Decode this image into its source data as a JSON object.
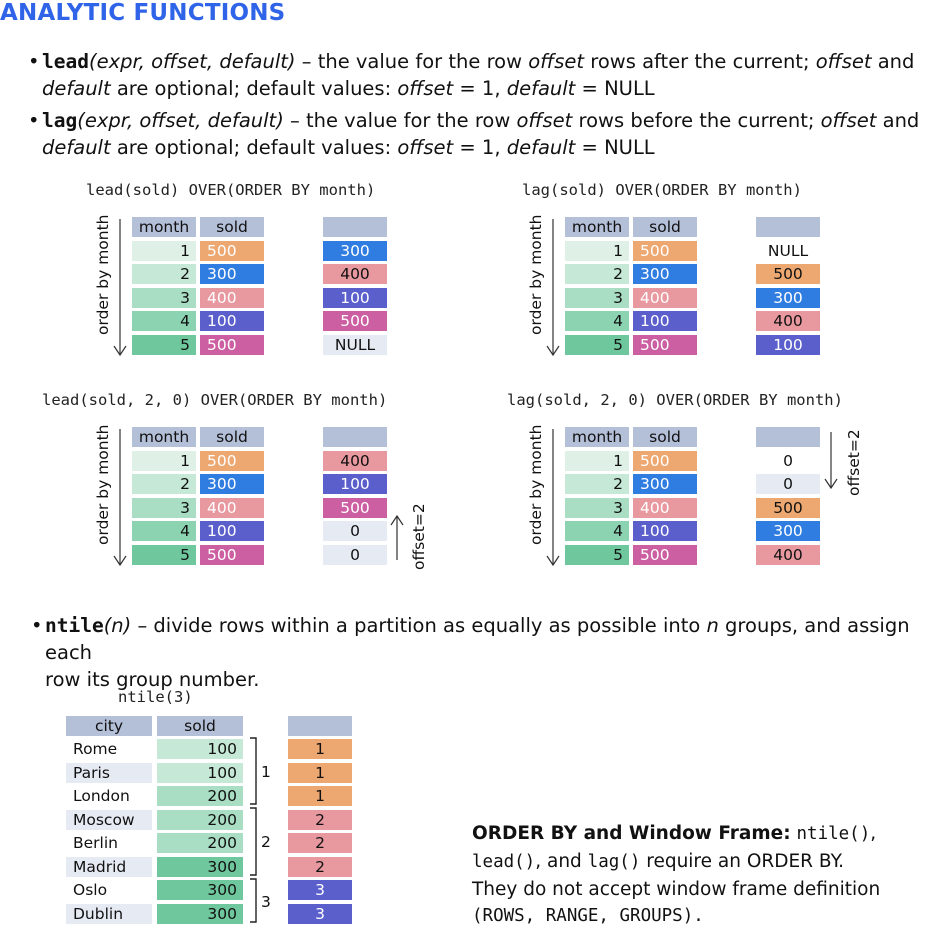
{
  "heading": "ANALYTIC FUNCTIONS",
  "bullets": {
    "lead": {
      "keyword": "lead",
      "args": "(expr, offset, default)",
      "line1_a": " – the value for the row ",
      "line1_i": "offset",
      "line1_b": " rows after the current; ",
      "line1_i2": "offset",
      "line1_c": " and",
      "line2_i": "default",
      "line2_a": " are optional; default values: ",
      "line2_i2": "offset",
      "line2_b": " = 1, ",
      "line2_i3": "default",
      "line2_c": " = NULL"
    },
    "lag": {
      "keyword": "lag",
      "args": "(expr, offset, default)",
      "line1_a": " – the value for the row ",
      "line1_i": "offset",
      "line1_b": " rows before the current; ",
      "line1_i2": "offset",
      "line1_c": " and",
      "line2_i": "default",
      "line2_a": " are optional; default values: ",
      "line2_i2": "offset",
      "line2_b": " = 1, ",
      "line2_i3": "default",
      "line2_c": " = NULL"
    },
    "ntile": {
      "keyword": "ntile",
      "args": "(n)",
      "line1_a": " – divide rows within a partition as equally as possible into ",
      "line1_i": "n",
      "line1_b": " groups, and assign each",
      "line2": "row its group number."
    }
  },
  "colors": {
    "c500": "#eda872",
    "c300": "#2f7de1",
    "c400": "#e8999f",
    "c100": "#5b5fcc",
    "c500b": "#cc5fa2",
    "m1": "#dff1e7",
    "m2": "#c5e9d6",
    "m3": "#a9dec4",
    "m4": "#8bd3b1",
    "m5": "#6fc89d",
    "header": "#b4bfd8",
    "light": "#e6eaf3"
  },
  "lead_simple": {
    "sql": "lead(sold) OVER(ORDER BY month)",
    "order_label": "order by month",
    "headers": [
      "month",
      "sold"
    ],
    "months": [
      "1",
      "2",
      "3",
      "4",
      "5"
    ],
    "sold": [
      "500",
      "300",
      "400",
      "100",
      "500"
    ],
    "result": [
      "300",
      "400",
      "100",
      "500",
      "NULL"
    ]
  },
  "lag_simple": {
    "sql": "lag(sold) OVER(ORDER BY month)",
    "order_label": "order by month",
    "headers": [
      "month",
      "sold"
    ],
    "months": [
      "1",
      "2",
      "3",
      "4",
      "5"
    ],
    "sold": [
      "500",
      "300",
      "400",
      "100",
      "500"
    ],
    "result": [
      "NULL",
      "500",
      "300",
      "400",
      "100"
    ]
  },
  "lead_offset": {
    "sql": "lead(sold, 2, 0) OVER(ORDER BY month)",
    "order_label": "order by month",
    "offset_label": "offset=2",
    "headers": [
      "month",
      "sold"
    ],
    "months": [
      "1",
      "2",
      "3",
      "4",
      "5"
    ],
    "sold": [
      "500",
      "300",
      "400",
      "100",
      "500"
    ],
    "result": [
      "400",
      "100",
      "500",
      "0",
      "0"
    ]
  },
  "lag_offset": {
    "sql": "lag(sold, 2, 0) OVER(ORDER BY month)",
    "order_label": "order by month",
    "offset_label": "offset=2",
    "headers": [
      "month",
      "sold"
    ],
    "months": [
      "1",
      "2",
      "3",
      "4",
      "5"
    ],
    "sold": [
      "500",
      "300",
      "400",
      "100",
      "500"
    ],
    "result": [
      "0",
      "0",
      "500",
      "300",
      "400"
    ]
  },
  "ntile": {
    "sql": "ntile(3)",
    "headers": [
      "city",
      "sold"
    ],
    "rows": [
      {
        "city": "Rome",
        "sold": "100",
        "group": "1"
      },
      {
        "city": "Paris",
        "sold": "100",
        "group": "1"
      },
      {
        "city": "London",
        "sold": "200",
        "group": "1"
      },
      {
        "city": "Moscow",
        "sold": "200",
        "group": "2"
      },
      {
        "city": "Berlin",
        "sold": "200",
        "group": "2"
      },
      {
        "city": "Madrid",
        "sold": "300",
        "group": "2"
      },
      {
        "city": "Oslo",
        "sold": "300",
        "group": "3"
      },
      {
        "city": "Dublin",
        "sold": "300",
        "group": "3"
      }
    ],
    "bracket_labels": [
      "1",
      "2",
      "3"
    ]
  },
  "note": {
    "title": "ORDER BY and Window Frame:",
    "f1": "ntile()",
    "sep1": ",",
    "f2": "lead()",
    "and": ", and ",
    "f3": "lag()",
    "rest1": " require an ORDER BY.",
    "line3": "They do not accept window frame definition",
    "line4": "(ROWS, RANGE, GROUPS)."
  }
}
